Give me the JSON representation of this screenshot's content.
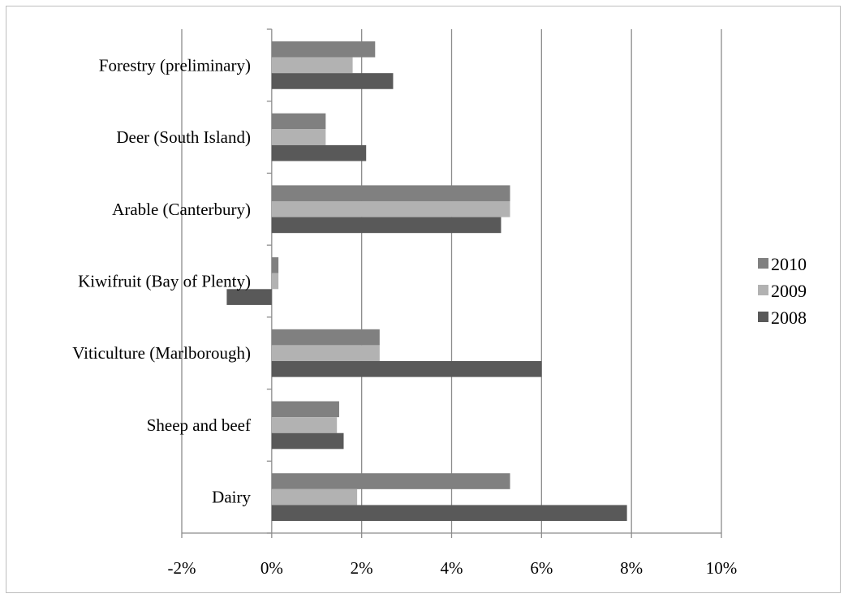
{
  "chart_data": {
    "type": "bar",
    "orientation": "horizontal",
    "categories": [
      "Dairy",
      "Sheep and beef",
      "Viticulture (Marlborough)",
      "Kiwifruit (Bay of Plenty)",
      "Arable (Canterbury)",
      "Deer (South Island)",
      "Forestry (preliminary)"
    ],
    "series": [
      {
        "name": "2010",
        "color": "#808080",
        "values": [
          5.3,
          1.5,
          2.4,
          0.15,
          5.3,
          1.2,
          2.3
        ]
      },
      {
        "name": "2009",
        "color": "#b2b2b2",
        "values": [
          1.9,
          1.45,
          2.4,
          0.15,
          5.3,
          1.2,
          1.8
        ]
      },
      {
        "name": "2008",
        "color": "#595959",
        "values": [
          7.9,
          1.6,
          6.0,
          -1.0,
          5.1,
          2.1,
          2.7
        ]
      }
    ],
    "xlim": [
      -2,
      10
    ],
    "xticks": [
      -2,
      0,
      2,
      4,
      6,
      8,
      10
    ],
    "xtick_labels": [
      "-2%",
      "0%",
      "2%",
      "4%",
      "6%",
      "8%",
      "10%"
    ],
    "grid": true,
    "legend_position": "right",
    "title": "",
    "xlabel": "",
    "ylabel": ""
  }
}
